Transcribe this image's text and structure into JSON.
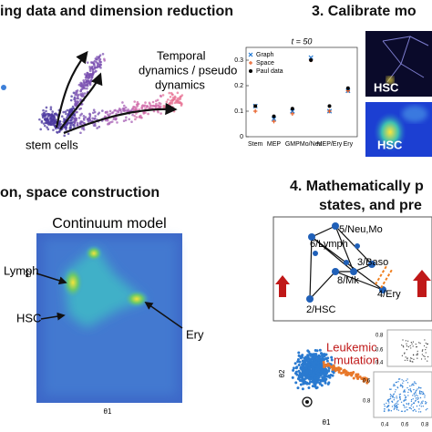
{
  "panel1": {
    "title": "ing data and dimension reduction",
    "annotation": [
      "Temporal",
      "dynamics / pseudo",
      "dynamics"
    ],
    "label": "stem cells"
  },
  "panel3": {
    "title": "3. Calibrate mo",
    "plot": {
      "type": "scatter",
      "title": "t = 50",
      "categories": [
        "Stem",
        "MEP",
        "GMP",
        "Mo/Neu",
        "MEP/Ery",
        "Ery"
      ],
      "series": [
        {
          "name": "Graph",
          "color": "#1f77d4",
          "marker": "x",
          "values": [
            0.12,
            0.07,
            0.1,
            0.31,
            0.1,
            0.18
          ]
        },
        {
          "name": "Space",
          "color": "#e8622a",
          "marker": "+",
          "values": [
            0.1,
            0.06,
            0.09,
            0.3,
            0.1,
            0.18
          ]
        },
        {
          "name": "Paul data",
          "color": "#000000",
          "marker": "dot",
          "values": [
            0.12,
            0.08,
            0.11,
            0.3,
            0.12,
            0.19
          ]
        }
      ],
      "ylim": [
        0,
        0.35
      ],
      "yticks": [
        0,
        0.1,
        0.2,
        0.3
      ]
    },
    "image_labels": [
      "HSC",
      "HSC"
    ]
  },
  "panel2": {
    "title": "on, space construction",
    "subtitle": "Continuum model",
    "labels": [
      "Lymph",
      "HSC",
      "Ery"
    ],
    "y_axis": "θ2",
    "x_axis": "θ1"
  },
  "panel4": {
    "title": [
      "4. Mathematically p",
      "states, and pre"
    ],
    "nodes": [
      "5/Neu,Mo",
      "6/Lymph",
      "3/Baso",
      "8/Mk",
      "4/Ery",
      "2/HSC"
    ],
    "mutation": [
      "Leukemic",
      "mutation"
    ],
    "y_axis": "θ2",
    "x_axis": "θ1",
    "inset_ticks": [
      "0.8",
      "0.6",
      "0.4",
      "0.6",
      "0.8",
      "0.4",
      "0.6",
      "0.8"
    ]
  }
}
